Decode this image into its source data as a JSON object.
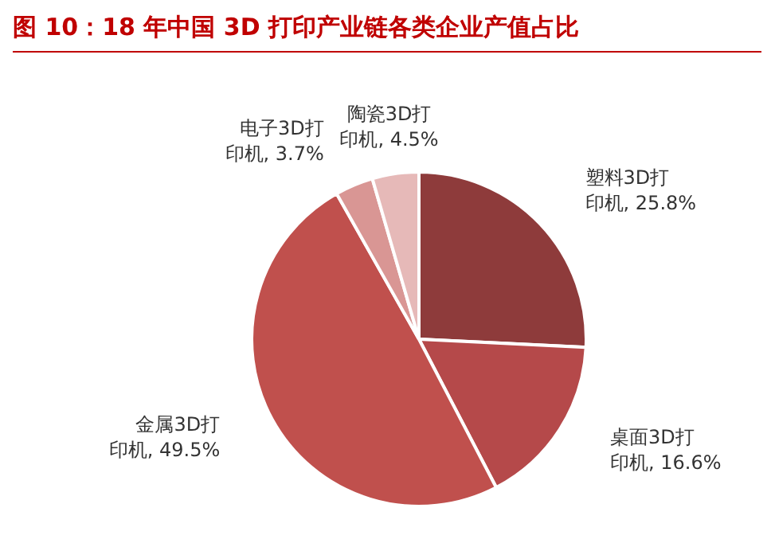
{
  "chart_data": {
    "type": "pie",
    "title": "图 10：18 年中国 3D 打印产业链各类企业产值占比",
    "categories": [
      "塑料3D打印机",
      "桌面3D打印机",
      "金属3D打印机",
      "电子3D打印机",
      "陶瓷3D打印机"
    ],
    "values": [
      25.8,
      16.6,
      49.5,
      3.7,
      4.5
    ],
    "value_labels": [
      "25.8%",
      "16.6%",
      "49.5%",
      "3.7%",
      "4.5%"
    ],
    "colors": [
      "#8e3b3b",
      "#b5494a",
      "#c0504d",
      "#d99694",
      "#e6b9b8"
    ],
    "legend": false
  }
}
